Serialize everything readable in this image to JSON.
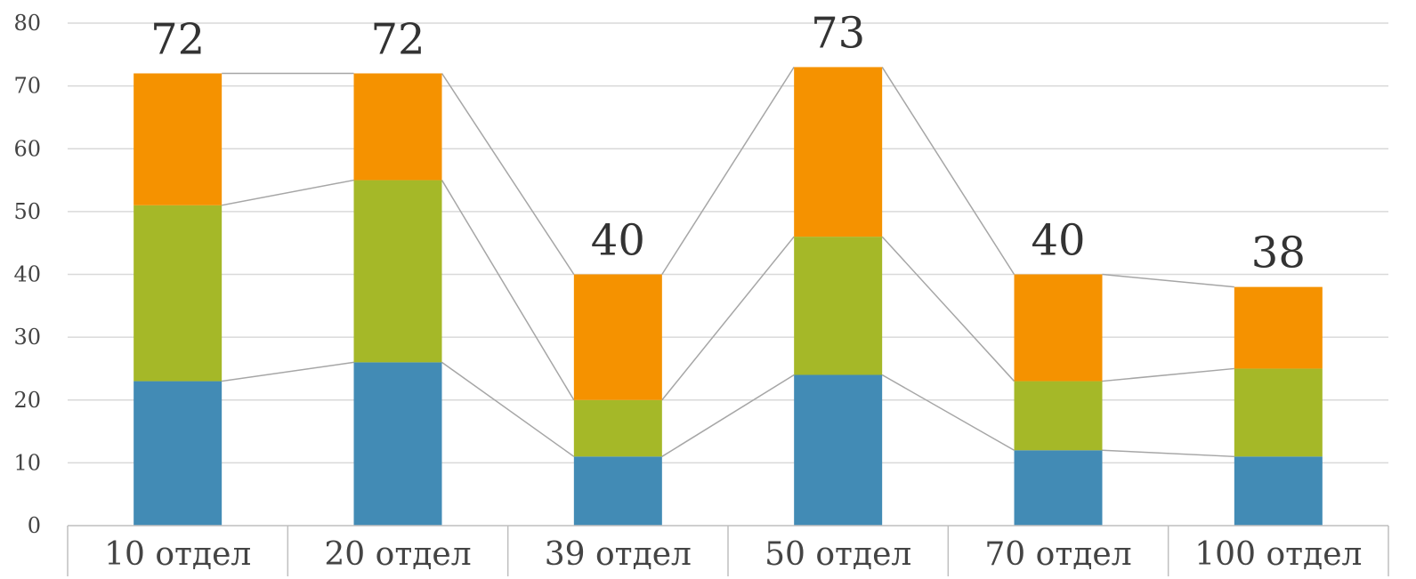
{
  "chart_data": {
    "type": "bar",
    "stacked": true,
    "categories": [
      "10 отдел",
      "20 отдел",
      "39 отдел",
      "50 отдел",
      "70 отдел",
      "100 отдел"
    ],
    "series": [
      {
        "values": [
          23,
          26,
          11,
          24,
          12,
          11
        ],
        "color": "#428bb5"
      },
      {
        "values": [
          28,
          29,
          9,
          22,
          11,
          14
        ],
        "color": "#a5b828"
      },
      {
        "values": [
          21,
          17,
          20,
          27,
          17,
          13
        ],
        "color": "#f59200"
      }
    ],
    "totals": [
      "72",
      "72",
      "40",
      "73",
      "40",
      "38"
    ],
    "yticks": [
      "0",
      "10",
      "20",
      "30",
      "40",
      "50",
      "60",
      "70",
      "80"
    ],
    "ylim": [
      0,
      80
    ],
    "grid": true,
    "series_lines": true,
    "legend": "none",
    "title": "",
    "xlabel": "",
    "ylabel": ""
  }
}
